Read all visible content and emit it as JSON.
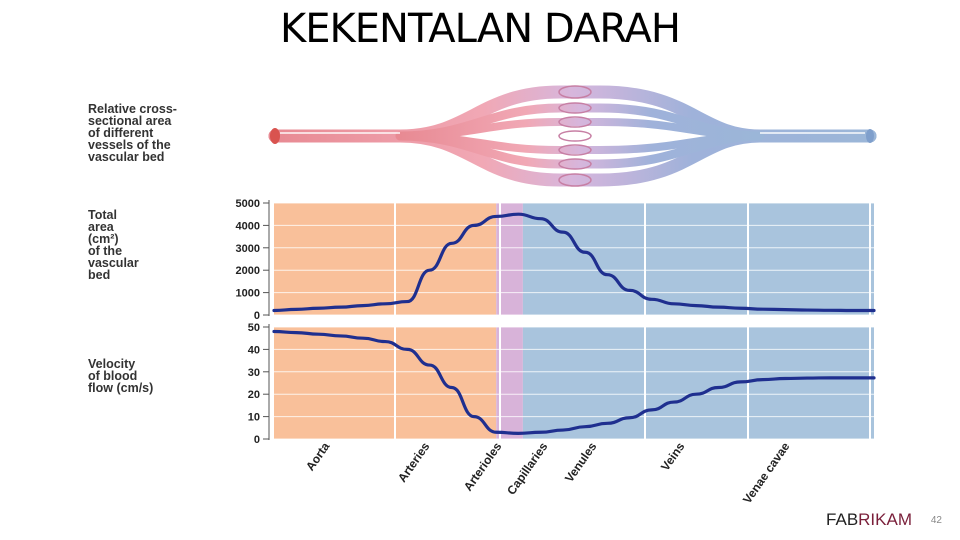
{
  "slide": {
    "title": "KEKENTALAN DARAH",
    "brand_part1": "FAB",
    "brand_part2": "RIKAM",
    "page_number": "42"
  },
  "labels": {
    "vessels": [
      "Relative cross-",
      "sectional area",
      "of different",
      "vessels of the",
      "vascular bed"
    ],
    "area": [
      "Total",
      "area",
      "(cm²)",
      "of the",
      "vascular",
      "bed"
    ],
    "velocity": [
      "Velocity",
      "of blood",
      "flow (cm/s)"
    ]
  },
  "chart_data": [
    {
      "type": "line",
      "ylabel": "Total area (cm²) of the vascular bed",
      "ylim": [
        0,
        5000
      ],
      "yticks": [
        "5000",
        "4000",
        "3000",
        "2000",
        "1000",
        "0"
      ],
      "categories": [
        "Aorta",
        "Arteries",
        "Arterioles",
        "Capillaries",
        "Venules",
        "Veins",
        "Venae cavae"
      ],
      "x": [
        0,
        0.1,
        0.2,
        0.3,
        0.4,
        0.5,
        0.6,
        0.7,
        0.8,
        0.9,
        1.0,
        1.1,
        1.2,
        1.3,
        1.4,
        1.5,
        1.6,
        1.7,
        1.8,
        1.9,
        2.0,
        2.1,
        2.2,
        2.3,
        2.4,
        2.5,
        2.6,
        2.7
      ],
      "values": [
        200,
        250,
        300,
        350,
        420,
        500,
        600,
        2000,
        3200,
        4000,
        4400,
        4500,
        4300,
        3700,
        2800,
        1800,
        1100,
        700,
        500,
        420,
        350,
        300,
        260,
        240,
        220,
        210,
        200,
        200
      ],
      "bands": [
        {
          "from": 0,
          "to": 1.0,
          "color": "#f9c09a"
        },
        {
          "from": 1.0,
          "to": 1.12,
          "color": "#d8b3d9"
        },
        {
          "from": 1.12,
          "to": 2.7,
          "color": "#a9c4dd"
        }
      ],
      "line_color": "#1f2f8f"
    },
    {
      "type": "line",
      "ylabel": "Velocity of blood flow (cm/s)",
      "ylim": [
        0,
        50
      ],
      "yticks": [
        "50",
        "40",
        "30",
        "20",
        "10",
        "0"
      ],
      "values": [
        48,
        47.5,
        46.8,
        46,
        45,
        43.5,
        40,
        33,
        23,
        10,
        3,
        2.5,
        3,
        4,
        5.5,
        7,
        9.5,
        13,
        16.5,
        20,
        23,
        25.5,
        26.5,
        27,
        27.2,
        27.3,
        27.3,
        27.3
      ],
      "line_color": "#1f2f8f"
    }
  ]
}
